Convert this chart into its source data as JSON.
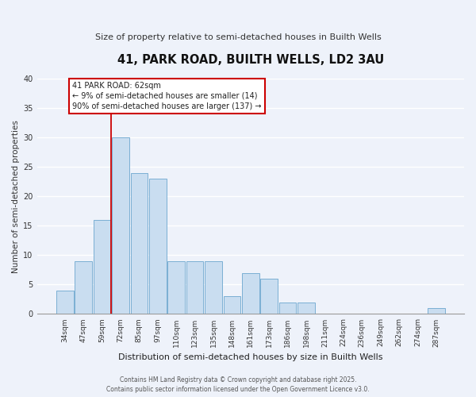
{
  "title": "41, PARK ROAD, BUILTH WELLS, LD2 3AU",
  "subtitle": "Size of property relative to semi-detached houses in Builth Wells",
  "bar_labels": [
    "34sqm",
    "47sqm",
    "59sqm",
    "72sqm",
    "85sqm",
    "97sqm",
    "110sqm",
    "123sqm",
    "135sqm",
    "148sqm",
    "161sqm",
    "173sqm",
    "186sqm",
    "198sqm",
    "211sqm",
    "224sqm",
    "236sqm",
    "249sqm",
    "262sqm",
    "274sqm",
    "287sqm"
  ],
  "bar_values": [
    4,
    9,
    16,
    30,
    24,
    23,
    9,
    9,
    9,
    3,
    7,
    6,
    2,
    2,
    0,
    0,
    0,
    0,
    0,
    0,
    1
  ],
  "bar_color": "#c9ddf0",
  "bar_edge_color": "#7aafd4",
  "vline_x_index": 2,
  "vline_color": "#cc0000",
  "xlabel": "Distribution of semi-detached houses by size in Builth Wells",
  "ylabel": "Number of semi-detached properties",
  "ylim": [
    0,
    40
  ],
  "yticks": [
    0,
    5,
    10,
    15,
    20,
    25,
    30,
    35,
    40
  ],
  "annotation_title": "41 PARK ROAD: 62sqm",
  "annotation_line1": "← 9% of semi-detached houses are smaller (14)",
  "annotation_line2": "90% of semi-detached houses are larger (137) →",
  "footer1": "Contains HM Land Registry data © Crown copyright and database right 2025.",
  "footer2": "Contains public sector information licensed under the Open Government Licence v3.0.",
  "bg_color": "#eef2fa",
  "grid_color": "#ffffff",
  "annotation_box_facecolor": "#ffffff",
  "annotation_box_edgecolor": "#cc0000",
  "title_fontsize": 10.5,
  "subtitle_fontsize": 8,
  "tick_fontsize": 6.5,
  "ylabel_fontsize": 7.5,
  "xlabel_fontsize": 8,
  "footer_fontsize": 5.5,
  "annotation_fontsize": 7
}
